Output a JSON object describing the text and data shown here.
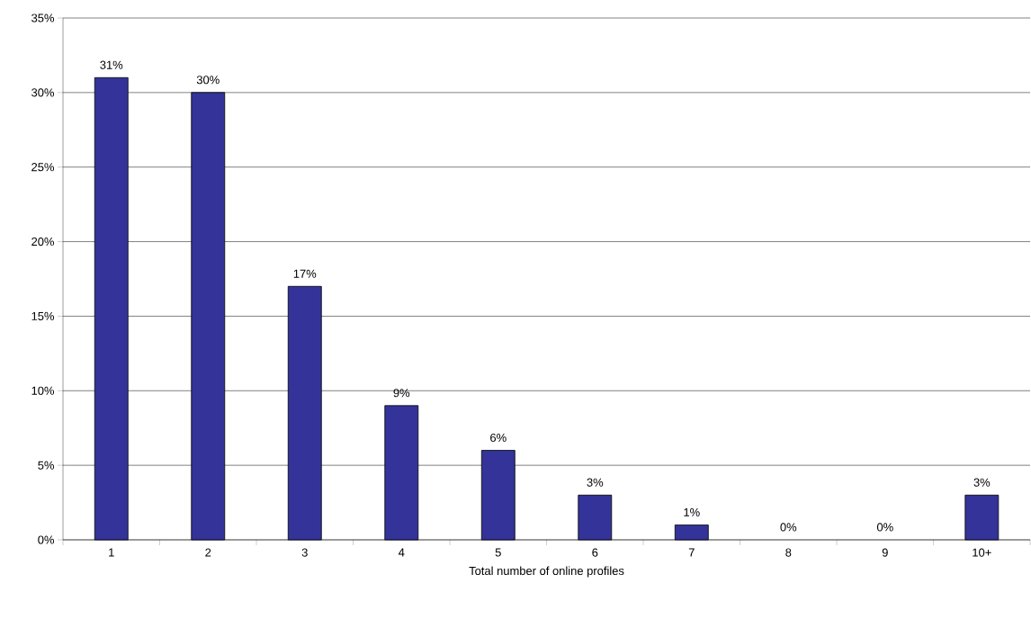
{
  "chart_data": {
    "type": "bar",
    "xlabel": "Total number of online profiles",
    "categories": [
      "1",
      "2",
      "3",
      "4",
      "5",
      "6",
      "7",
      "8",
      "9",
      "10+"
    ],
    "values": [
      31,
      30,
      17,
      9,
      6,
      3,
      1,
      0,
      0,
      3
    ],
    "value_labels": [
      "31%",
      "30%",
      "17%",
      "9%",
      "6%",
      "3%",
      "1%",
      "0%",
      "0%",
      "3%"
    ],
    "color": "#333399",
    "ylim": [
      0,
      35
    ],
    "yticks": [
      {
        "value": 0,
        "label": "0%"
      },
      {
        "value": 5,
        "label": "5%"
      },
      {
        "value": 10,
        "label": "10%"
      },
      {
        "value": 15,
        "label": "15%"
      },
      {
        "value": 20,
        "label": "20%"
      },
      {
        "value": 25,
        "label": "25%"
      },
      {
        "value": 30,
        "label": "30%"
      },
      {
        "value": 35,
        "label": "35%"
      }
    ],
    "grid": "y"
  }
}
